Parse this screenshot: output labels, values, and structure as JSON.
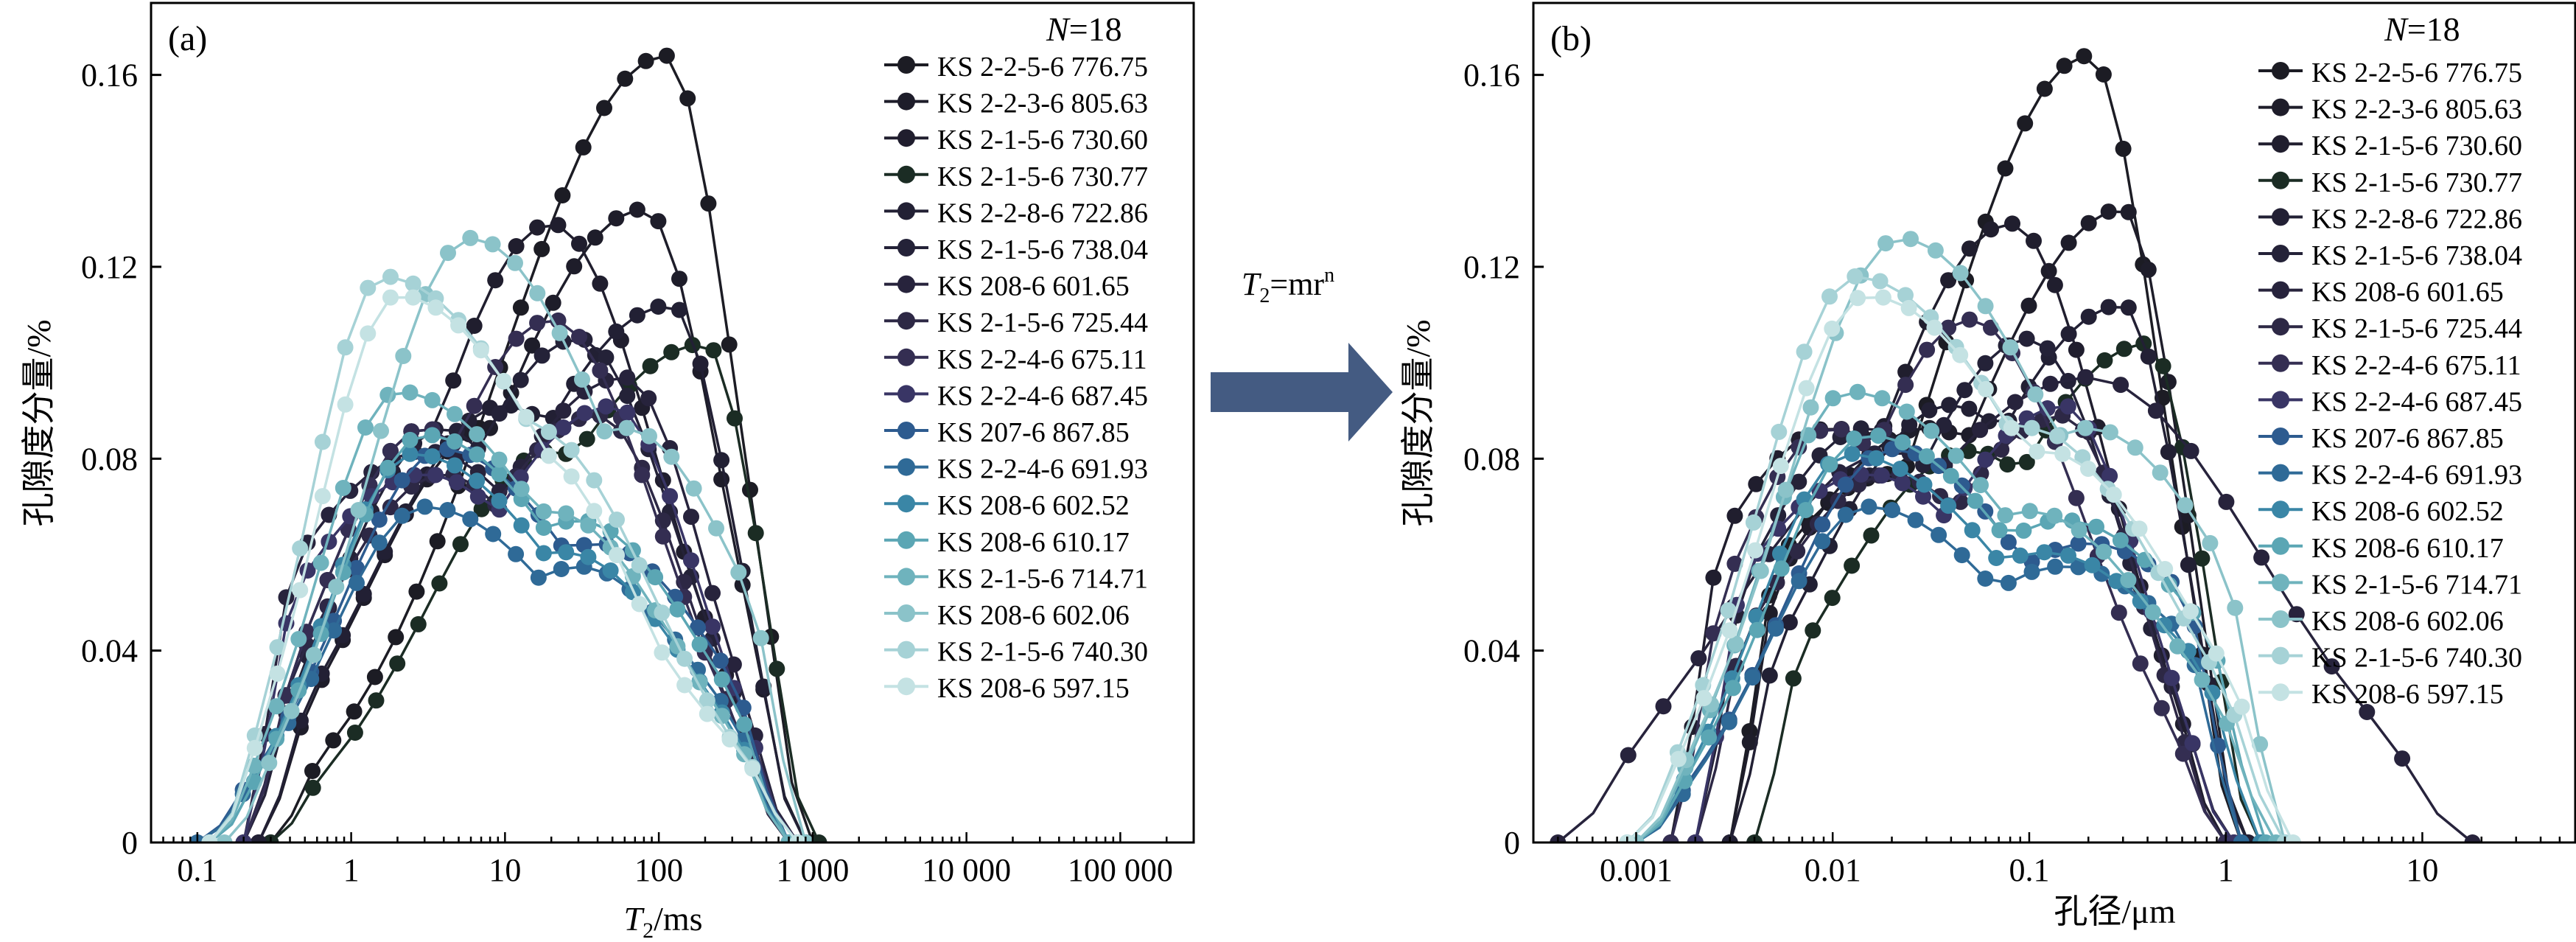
{
  "charts": [
    {
      "panel_label": "(a)",
      "n_label": {
        "symbol": "N",
        "rest": "=18"
      },
      "xlabel": {
        "symbol": "T",
        "sub": "2",
        "rest": "/ms"
      },
      "ylabel": "孔隙度分量/%",
      "xaxis_type": "log",
      "xlim": [
        0.05,
        300000
      ],
      "xticks": [
        {
          "value": 0.1,
          "label": "0.1"
        },
        {
          "value": 1,
          "label": "1"
        },
        {
          "value": 10,
          "label": "10"
        },
        {
          "value": 100,
          "label": "100"
        },
        {
          "value": 1000,
          "label": "1 000"
        },
        {
          "value": 10000,
          "label": "10 000"
        },
        {
          "value": 100000,
          "label": "100 000"
        }
      ]
    },
    {
      "panel_label": "(b)",
      "n_label": {
        "symbol": "N",
        "rest": "=18"
      },
      "xlabel": {
        "symbol": "",
        "sub": "",
        "rest": "孔径/μm"
      },
      "ylabel": "孔隙度分量/%",
      "xaxis_type": "log",
      "xlim": [
        0.0003,
        60
      ],
      "xticks": [
        {
          "value": 0.001,
          "label": "0.001"
        },
        {
          "value": 0.01,
          "label": "0.01"
        },
        {
          "value": 0.1,
          "label": "0.1"
        },
        {
          "value": 1,
          "label": "1"
        },
        {
          "value": 10,
          "label": "10"
        }
      ]
    }
  ],
  "arrow_label": {
    "symbol": "T",
    "sub": "2",
    "rest": "=mr",
    "sup": "n"
  },
  "legend": [
    "KS 2-2-5-6 776.75",
    "KS 2-2-3-6 805.63",
    "KS 2-1-5-6 730.60",
    "KS 2-1-5-6 730.77",
    "KS 2-2-8-6 722.86",
    "KS 2-1-5-6 738.04",
    "KS 208-6 601.65",
    "KS 2-1-5-6 725.44",
    "KS 2-2-4-6 675.11",
    "KS 2-2-4-6 687.45",
    "KS 207-6 867.85",
    "KS 2-2-4-6 691.93",
    "KS 208-6 602.52",
    "KS 208-6 610.17",
    "KS 2-1-5-6 714.71",
    "KS 208-6 602.06",
    "KS 2-1-5-6 740.30",
    "KS 208-6 597.15"
  ],
  "chart_data": [
    {
      "type": "line",
      "title": "(a)",
      "xlabel": "T2/ms",
      "ylabel": "孔隙度分量/%",
      "x_scale": "log",
      "xlim": [
        0.05,
        300000
      ],
      "ylim": [
        0,
        0.175
      ],
      "yticks": [
        0,
        0.04,
        0.08,
        0.12,
        0.16
      ],
      "legend_position": "top-right",
      "series": [
        {
          "name": "KS 2-2-5-6 776.75",
          "color": "#1c1c24",
          "peak_x": 110,
          "peak_y": 0.164,
          "shoulder_x": 15,
          "shoulder_y": 0.08,
          "x_start": 0.3,
          "x_end": 1000,
          "points": []
        },
        {
          "name": "KS 2-2-3-6 805.63",
          "color": "#1e1d2a",
          "peak_x": 80,
          "peak_y": 0.132,
          "shoulder_x": 8,
          "shoulder_y": 0.09,
          "x_start": 0.25,
          "x_end": 900,
          "points": []
        },
        {
          "name": "KS 2-1-5-6 730.60",
          "color": "#201e2e",
          "peak_x": 20,
          "peak_y": 0.129,
          "shoulder_x": 3,
          "shoulder_y": 0.09,
          "x_start": 0.2,
          "x_end": 700,
          "points": []
        },
        {
          "name": "KS 2-1-5-6 730.77",
          "color": "#1b2c24",
          "peak_x": 200,
          "peak_y": 0.104,
          "shoulder_x": 20,
          "shoulder_y": 0.085,
          "x_start": 0.3,
          "x_end": 1100,
          "points": []
        },
        {
          "name": "KS 2-2-8-6 722.86",
          "color": "#222034",
          "peak_x": 120,
          "peak_y": 0.112,
          "shoulder_x": 10,
          "shoulder_y": 0.095,
          "x_start": 0.25,
          "x_end": 900,
          "points": []
        },
        {
          "name": "KS 2-1-5-6 738.04",
          "color": "#242238",
          "peak_x": 30,
          "peak_y": 0.105,
          "shoulder_x": 4,
          "shoulder_y": 0.09,
          "x_start": 0.2,
          "x_end": 800,
          "points": []
        },
        {
          "name": "KS 208-6 601.65",
          "color": "#27233c",
          "peak_x": 60,
          "peak_y": 0.097,
          "shoulder_x": 3,
          "shoulder_y": 0.085,
          "x_start": 0.2,
          "x_end": 800,
          "points": []
        },
        {
          "name": "KS 2-1-5-6 725.44",
          "color": "#2d2845",
          "peak_x": 40,
          "peak_y": 0.089,
          "shoulder_x": 4,
          "shoulder_y": 0.08,
          "x_start": 0.2,
          "x_end": 700,
          "points": []
        },
        {
          "name": "KS 2-2-4-6 675.11",
          "color": "#342e52",
          "peak_x": 20,
          "peak_y": 0.109,
          "shoulder_x": 3,
          "shoulder_y": 0.09,
          "x_start": 0.2,
          "x_end": 700,
          "points": []
        },
        {
          "name": "KS 2-2-4-6 687.45",
          "color": "#393565",
          "peak_x": 50,
          "peak_y": 0.091,
          "shoulder_x": 3,
          "shoulder_y": 0.08,
          "x_start": 0.2,
          "x_end": 800,
          "points": []
        },
        {
          "name": "KS 207-6 867.85",
          "color": "#2d5b8f",
          "peak_x": 4,
          "peak_y": 0.082,
          "shoulder_x": 40,
          "shoulder_y": 0.065,
          "x_start": 0.1,
          "x_end": 700,
          "points": []
        },
        {
          "name": "KS 2-2-4-6 691.93",
          "color": "#2f6a97",
          "peak_x": 3,
          "peak_y": 0.07,
          "shoulder_x": 30,
          "shoulder_y": 0.06,
          "x_start": 0.1,
          "x_end": 700,
          "points": []
        },
        {
          "name": "KS 208-6 602.52",
          "color": "#3a86a6",
          "peak_x": 2.5,
          "peak_y": 0.081,
          "shoulder_x": 25,
          "shoulder_y": 0.063,
          "x_start": 0.12,
          "x_end": 700,
          "points": []
        },
        {
          "name": "KS 208-6 610.17",
          "color": "#5ba6b4",
          "peak_x": 3,
          "peak_y": 0.085,
          "shoulder_x": 30,
          "shoulder_y": 0.07,
          "x_start": 0.12,
          "x_end": 700,
          "points": []
        },
        {
          "name": "KS 2-1-5-6 714.71",
          "color": "#6fb3bd",
          "peak_x": 2,
          "peak_y": 0.094,
          "shoulder_x": 20,
          "shoulder_y": 0.072,
          "x_start": 0.12,
          "x_end": 700,
          "points": []
        },
        {
          "name": "KS 208-6 602.06",
          "color": "#8bc3c9",
          "peak_x": 6,
          "peak_y": 0.126,
          "shoulder_x": 60,
          "shoulder_y": 0.09,
          "x_start": 0.15,
          "x_end": 900,
          "points": []
        },
        {
          "name": "KS 2-1-5-6 740.30",
          "color": "#a6d2d6",
          "peak_x": 1.6,
          "peak_y": 0.118,
          "shoulder_x": 15,
          "shoulder_y": 0.09,
          "x_start": 0.12,
          "x_end": 800,
          "points": []
        },
        {
          "name": "KS 208-6 597.15",
          "color": "#c4e2e3",
          "peak_x": 2,
          "peak_y": 0.114,
          "shoulder_x": 15,
          "shoulder_y": 0.085,
          "x_start": 0.12,
          "x_end": 800,
          "points": []
        }
      ]
    },
    {
      "type": "line",
      "title": "(b)",
      "xlabel": "孔径/μm",
      "ylabel": "孔隙度分量/%",
      "x_scale": "log",
      "xlim": [
        0.0003,
        60
      ],
      "ylim": [
        0,
        0.175
      ],
      "yticks": [
        0,
        0.04,
        0.08,
        0.12,
        0.16
      ],
      "legend_position": "top-right",
      "series": [
        {
          "name": "KS 2-2-5-6 776.75",
          "color": "#1c1c24",
          "peak_x": 0.2,
          "peak_y": 0.164,
          "shoulder_x": 0.02,
          "shoulder_y": 0.08,
          "x_start": 0.003,
          "x_end": 1.2,
          "points": []
        },
        {
          "name": "KS 2-2-3-6 805.63",
          "color": "#1e1d2a",
          "peak_x": 0.3,
          "peak_y": 0.132,
          "shoulder_x": 0.03,
          "shoulder_y": 0.09,
          "x_start": 0.003,
          "x_end": 1.3,
          "points": []
        },
        {
          "name": "KS 2-1-5-6 730.60",
          "color": "#201e2e",
          "peak_x": 0.08,
          "peak_y": 0.129,
          "shoulder_x": 0.01,
          "shoulder_y": 0.09,
          "x_start": 0.0015,
          "x_end": 1.0,
          "points": []
        },
        {
          "name": "KS 2-1-5-6 730.77",
          "color": "#1b2c24",
          "peak_x": 0.4,
          "peak_y": 0.104,
          "shoulder_x": 0.05,
          "shoulder_y": 0.085,
          "x_start": 0.004,
          "x_end": 1.5,
          "points": []
        },
        {
          "name": "KS 2-2-8-6 722.86",
          "color": "#222034",
          "peak_x": 0.3,
          "peak_y": 0.112,
          "shoulder_x": 0.04,
          "shoulder_y": 0.095,
          "x_start": 0.003,
          "x_end": 1.3,
          "points": []
        },
        {
          "name": "KS 2-1-5-6 738.04",
          "color": "#242238",
          "peak_x": 0.1,
          "peak_y": 0.105,
          "shoulder_x": 0.015,
          "shoulder_y": 0.09,
          "x_start": 0.002,
          "x_end": 1.1,
          "points": []
        },
        {
          "name": "KS 208-6 601.65",
          "color": "#27233c",
          "peak_x": 0.2,
          "peak_y": 0.097,
          "shoulder_x": 0.02,
          "shoulder_y": 0.085,
          "x_start": 0.0004,
          "x_end": 18,
          "points": []
        },
        {
          "name": "KS 2-1-5-6 725.44",
          "color": "#2d2845",
          "peak_x": 0.15,
          "peak_y": 0.089,
          "shoulder_x": 0.02,
          "shoulder_y": 0.08,
          "x_start": 0.002,
          "x_end": 1.0,
          "points": []
        },
        {
          "name": "KS 2-2-4-6 675.11",
          "color": "#342e52",
          "peak_x": 0.05,
          "peak_y": 0.109,
          "shoulder_x": 0.01,
          "shoulder_y": 0.09,
          "x_start": 0.0015,
          "x_end": 1.0,
          "points": []
        },
        {
          "name": "KS 2-2-4-6 687.45",
          "color": "#393565",
          "peak_x": 0.15,
          "peak_y": 0.091,
          "shoulder_x": 0.015,
          "shoulder_y": 0.08,
          "x_start": 0.002,
          "x_end": 1.1,
          "points": []
        },
        {
          "name": "KS 207-6 867.85",
          "color": "#2d5b8f",
          "peak_x": 0.02,
          "peak_y": 0.082,
          "shoulder_x": 0.2,
          "shoulder_y": 0.065,
          "x_start": 0.001,
          "x_end": 1.2,
          "points": []
        },
        {
          "name": "KS 2-2-4-6 691.93",
          "color": "#2f6a97",
          "peak_x": 0.015,
          "peak_y": 0.07,
          "shoulder_x": 0.15,
          "shoulder_y": 0.06,
          "x_start": 0.001,
          "x_end": 1.2,
          "points": []
        },
        {
          "name": "KS 208-6 602.52",
          "color": "#3a86a6",
          "peak_x": 0.012,
          "peak_y": 0.081,
          "shoulder_x": 0.12,
          "shoulder_y": 0.063,
          "x_start": 0.001,
          "x_end": 1.5,
          "points": []
        },
        {
          "name": "KS 208-6 610.17",
          "color": "#5ba6b4",
          "peak_x": 0.015,
          "peak_y": 0.085,
          "shoulder_x": 0.15,
          "shoulder_y": 0.07,
          "x_start": 0.001,
          "x_end": 1.6,
          "points": []
        },
        {
          "name": "KS 2-1-5-6 714.71",
          "color": "#6fb3bd",
          "peak_x": 0.012,
          "peak_y": 0.094,
          "shoulder_x": 0.1,
          "shoulder_y": 0.072,
          "x_start": 0.001,
          "x_end": 1.8,
          "points": []
        },
        {
          "name": "KS 208-6 602.06",
          "color": "#8bc3c9",
          "peak_x": 0.022,
          "peak_y": 0.126,
          "shoulder_x": 0.2,
          "shoulder_y": 0.09,
          "x_start": 0.001,
          "x_end": 2.0,
          "points": []
        },
        {
          "name": "KS 2-1-5-6 740.30",
          "color": "#a6d2d6",
          "peak_x": 0.013,
          "peak_y": 0.118,
          "shoulder_x": 0.1,
          "shoulder_y": 0.09,
          "x_start": 0.0009,
          "x_end": 2.0,
          "points": []
        },
        {
          "name": "KS 208-6 597.15",
          "color": "#c4e2e3",
          "peak_x": 0.015,
          "peak_y": 0.114,
          "shoulder_x": 0.12,
          "shoulder_y": 0.085,
          "x_start": 0.0009,
          "x_end": 2.2,
          "points": []
        }
      ]
    }
  ]
}
